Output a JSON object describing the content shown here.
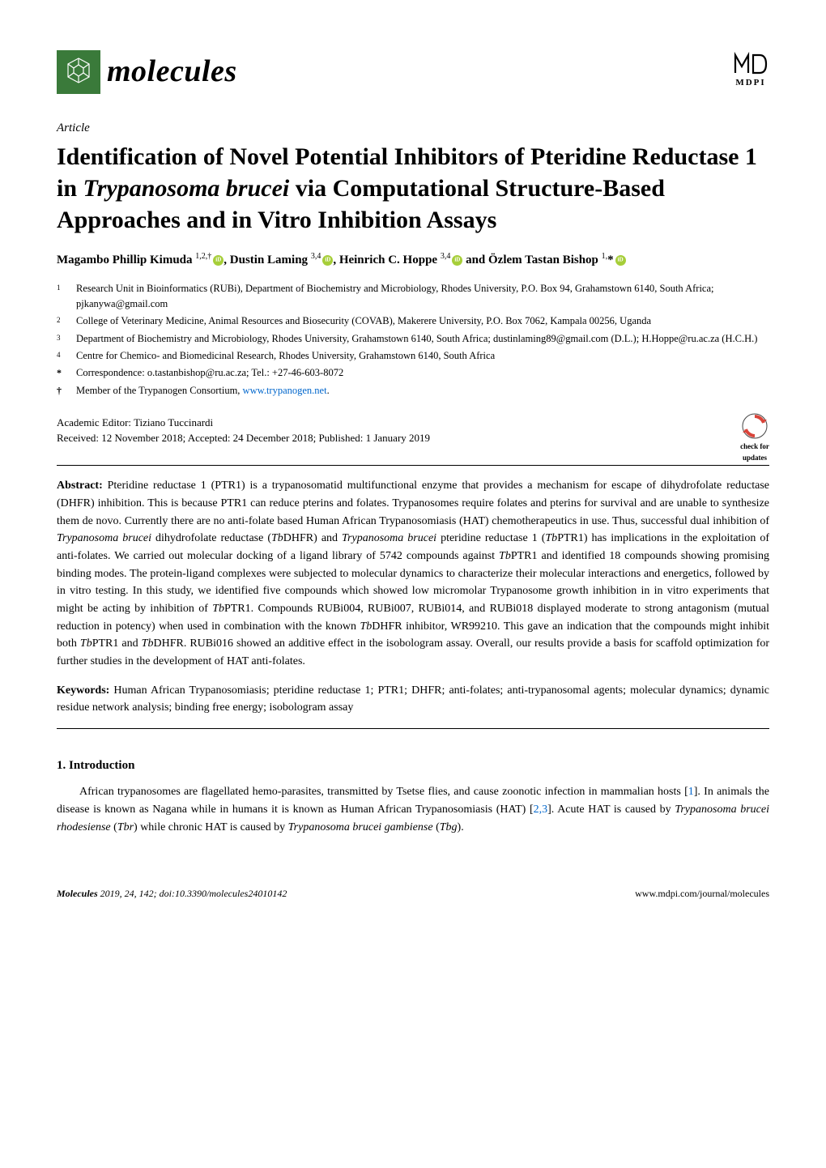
{
  "journal": {
    "name": "molecules",
    "logo_bg": "#3a7a3a",
    "logo_accent": "#ffffff"
  },
  "publisher": {
    "name": "MDPI"
  },
  "article_type": "Article",
  "title": "Identification of Novel Potential Inhibitors of Pteridine Reductase 1 in Trypanosoma brucei via Computational Structure-Based Approaches and in Vitro Inhibition Assays",
  "authors_html": "Magambo Phillip Kimuda <sup>1,2,†</sup><span class='orcid'></span>, Dustin Laming <sup>3,4</sup><span class='orcid'></span>, Heinrich C. Hoppe <sup>3,4</sup><span class='orcid'></span> and Özlem Tastan Bishop <sup>1,</sup>*<span class='orcid'></span>",
  "affiliations": [
    {
      "num": "1",
      "text": "Research Unit in Bioinformatics (RUBi), Department of Biochemistry and Microbiology, Rhodes University, P.O. Box 94, Grahamstown 6140, South Africa; pjkanywa@gmail.com"
    },
    {
      "num": "2",
      "text": "College of Veterinary Medicine, Animal Resources and Biosecurity (COVAB), Makerere University, P.O. Box 7062, Kampala 00256, Uganda"
    },
    {
      "num": "3",
      "text": "Department of Biochemistry and Microbiology, Rhodes University, Grahamstown 6140, South Africa; dustinlaming89@gmail.com (D.L.); H.Hoppe@ru.ac.za (H.C.H.)"
    },
    {
      "num": "4",
      "text": "Centre for Chemico- and Biomedicinal Research, Rhodes University, Grahamstown 6140, South Africa"
    }
  ],
  "correspondence": {
    "sym": "*",
    "text": "Correspondence: o.tastanbishop@ru.ac.za; Tel.: +27-46-603-8072"
  },
  "dagger_note": {
    "sym": "†",
    "text": "Member of the Trypanogen Consortium, ",
    "link_text": "www.trypanogen.net",
    "tail": "."
  },
  "editor": "Academic Editor: Tiziano Tuccinardi",
  "dates": "Received: 12 November 2018; Accepted: 24 December 2018; Published: 1 January 2019",
  "check_updates_label1": "check for",
  "check_updates_label2": "updates",
  "abstract_label": "Abstract:",
  "abstract_text": " Pteridine reductase 1 (PTR1) is a trypanosomatid multifunctional enzyme that provides a mechanism for escape of dihydrofolate reductase (DHFR) inhibition. This is because PTR1 can reduce pterins and folates. Trypanosomes require folates and pterins for survival and are unable to synthesize them de novo. Currently there are no anti-folate based Human African Trypanosomiasis (HAT) chemotherapeutics in use. Thus, successful dual inhibition of Trypanosoma brucei dihydrofolate reductase (TbDHFR) and Trypanosoma brucei pteridine reductase 1 (TbPTR1) has implications in the exploitation of anti-folates. We carried out molecular docking of a ligand library of 5742 compounds against TbPTR1 and identified 18 compounds showing promising binding modes. The protein-ligand complexes were subjected to molecular dynamics to characterize their molecular interactions and energetics, followed by in vitro testing. In this study, we identified five compounds which showed low micromolar Trypanosome growth inhibition in in vitro experiments that might be acting by inhibition of TbPTR1. Compounds RUBi004, RUBi007, RUBi014, and RUBi018 displayed moderate to strong antagonism (mutual reduction in potency) when used in combination with the known TbDHFR inhibitor, WR99210. This gave an indication that the compounds might inhibit both TbPTR1 and TbDHFR. RUBi016 showed an additive effect in the isobologram assay. Overall, our results provide a basis for scaffold optimization for further studies in the development of HAT anti-folates.",
  "keywords_label": "Keywords:",
  "keywords_text": " Human African Trypanosomiasis; pteridine reductase 1; PTR1; DHFR; anti-folates; anti-trypanosomal agents; molecular dynamics; dynamic residue network analysis; binding free energy; isobologram assay",
  "section1_heading": "1. Introduction",
  "body_paragraph": "African trypanosomes are flagellated hemo-parasites, transmitted by Tsetse flies, and cause zoonotic infection in mammalian hosts [1]. In animals the disease is known as Nagana while in humans it is known as Human African Trypanosomiasis (HAT) [2,3]. Acute HAT is caused by Trypanosoma brucei rhodesiense (Tbr) while chronic HAT is caused by Trypanosoma brucei gambiense (Tbg).",
  "footer": {
    "left_journal": "Molecules ",
    "left_year_vol": "2019, 24, 142; doi:10.3390/molecules24010142",
    "right": "www.mdpi.com/journal/molecules"
  },
  "colors": {
    "text": "#000000",
    "link": "#0066cc",
    "orcid": "#A6CE39",
    "check_arrow": "#d9443a",
    "check_circle": "#444444"
  }
}
